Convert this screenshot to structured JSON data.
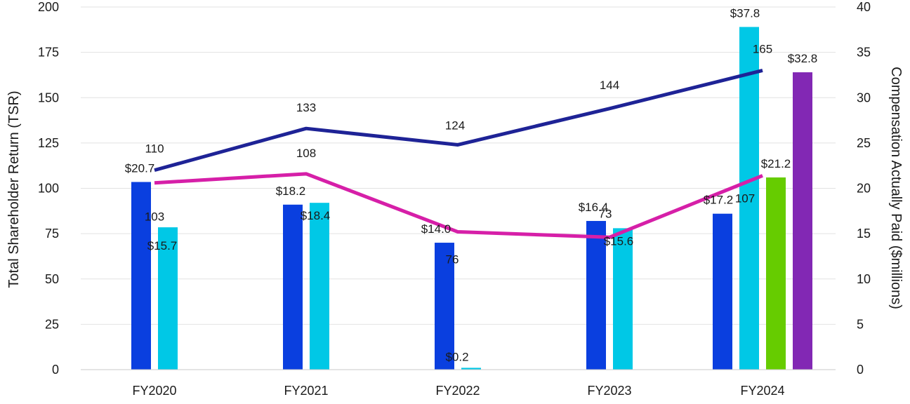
{
  "chart_data": {
    "type": "bar",
    "title": "",
    "categories": [
      "FY2020",
      "FY2021",
      "FY2022",
      "FY2023",
      "FY2024"
    ],
    "ylabel_left": "Total Shareholder Return (TSR)",
    "ylabel_right": "Compensation Actually Paid ($millions)",
    "ylim_left": [
      0,
      200
    ],
    "ylim_right": [
      0,
      40
    ],
    "yticks_left": [
      "0",
      "25",
      "50",
      "75",
      "100",
      "125",
      "150",
      "175",
      "200"
    ],
    "yticks_right": [
      "0",
      "5",
      "10",
      "15",
      "20",
      "25",
      "30",
      "35",
      "40"
    ],
    "grid": true,
    "bar_series": [
      {
        "name": "CAP series 1",
        "color": "#0a3fdf",
        "axis": "right",
        "values": [
          20.7,
          18.2,
          14.0,
          16.4,
          17.2
        ],
        "labels": [
          "$20.7",
          "$18.2",
          "$14.0",
          "$16.4",
          "$17.2"
        ]
      },
      {
        "name": "CAP series 2",
        "color": "#00c8e6",
        "axis": "right",
        "values": [
          15.7,
          18.4,
          0.2,
          15.6,
          37.8
        ],
        "labels": [
          "$15.7",
          "$18.4",
          "$0.2",
          "$15.6",
          "$37.8"
        ]
      },
      {
        "name": "CAP series 3",
        "color": "#66cc00",
        "axis": "right",
        "values": [
          null,
          null,
          null,
          null,
          21.2
        ],
        "labels": [
          null,
          null,
          null,
          null,
          "$21.2"
        ]
      },
      {
        "name": "CAP series 4",
        "color": "#8228b4",
        "axis": "right",
        "values": [
          null,
          null,
          null,
          null,
          32.8
        ],
        "labels": [
          null,
          null,
          null,
          null,
          "$32.8"
        ]
      }
    ],
    "line_series": [
      {
        "name": "TSR series 1",
        "color": "#1e2396",
        "axis": "left",
        "values": [
          110,
          133,
          124,
          144,
          165
        ],
        "labels": [
          "110",
          "133",
          "124",
          "144",
          "165"
        ]
      },
      {
        "name": "TSR series 2",
        "color": "#d61fa8",
        "axis": "left",
        "values": [
          103,
          108,
          76,
          73,
          107
        ],
        "labels": [
          "103",
          "108",
          "76",
          "73",
          "107"
        ]
      }
    ]
  }
}
